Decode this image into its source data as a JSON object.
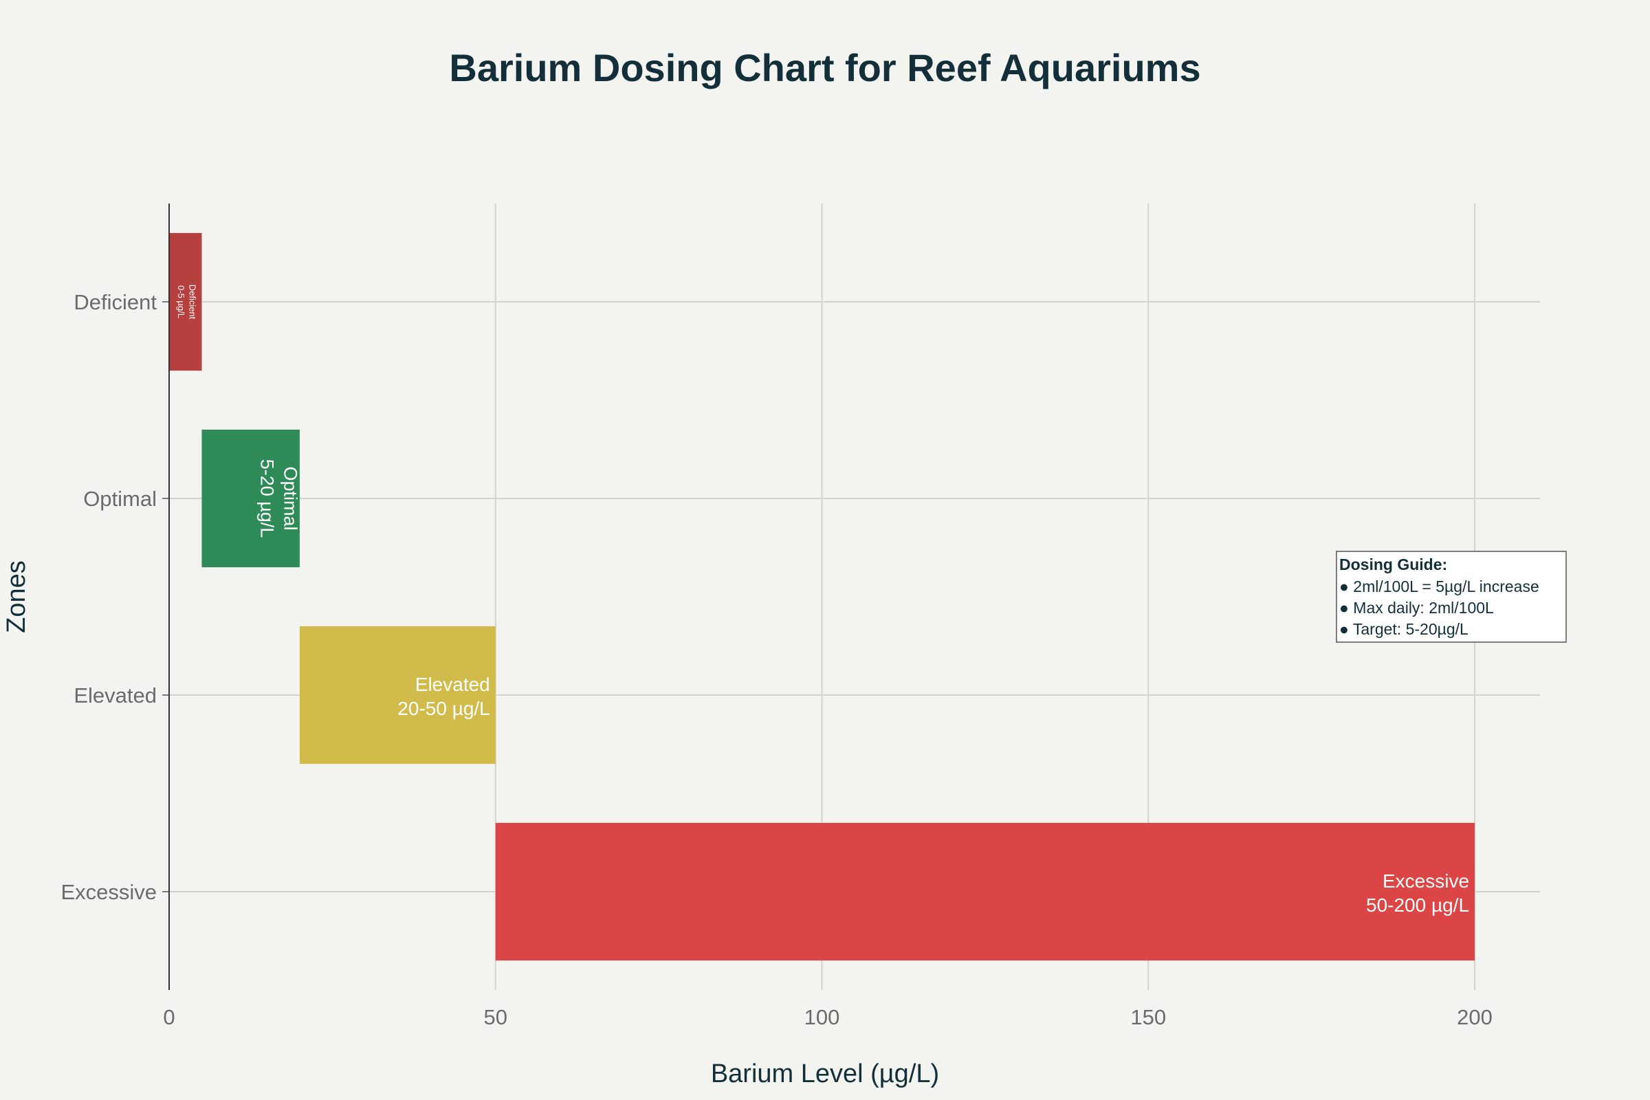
{
  "chart_data": {
    "type": "bar",
    "orientation": "horizontal",
    "title": "Barium Dosing Chart for Reef Aquariums",
    "xlabel": "Barium Level (µg/L)",
    "ylabel": "Zones",
    "xlim": [
      0,
      210
    ],
    "xticks": [
      0,
      50,
      100,
      150,
      200
    ],
    "grid": true,
    "categories": [
      "Deficient",
      "Optimal",
      "Elevated",
      "Excessive"
    ],
    "bars": [
      {
        "zone": "Deficient",
        "start": 0,
        "end": 5,
        "label_line1": "Deficient",
        "label_line2": "0-5 µg/L",
        "color": "#b5403e"
      },
      {
        "zone": "Optimal",
        "start": 5,
        "end": 20,
        "label_line1": "Optimal",
        "label_line2": "5-20 µg/L",
        "color": "#2e8b57"
      },
      {
        "zone": "Elevated",
        "start": 20,
        "end": 50,
        "label_line1": "Elevated",
        "label_line2": "20-50 µg/L",
        "color": "#d1bb4a"
      },
      {
        "zone": "Excessive",
        "start": 50,
        "end": 200,
        "label_line1": "Excessive",
        "label_line2": "50-200 µg/L",
        "color": "#db4545"
      }
    ],
    "annotation": {
      "title": "Dosing Guide:",
      "lines": [
        "● 2ml/100L = 5µg/L increase",
        "● Max daily: 2ml/100L",
        "● Target: 5-20µg/L"
      ]
    }
  }
}
